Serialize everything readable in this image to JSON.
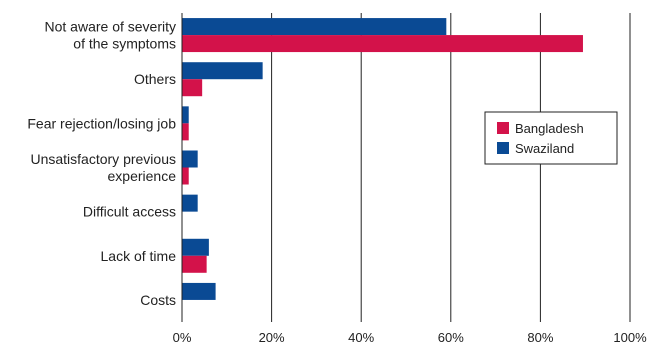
{
  "chart_data": {
    "type": "bar",
    "orientation": "horizontal",
    "categories": [
      [
        "Not aware of severity",
        "of the symptoms"
      ],
      [
        "Others"
      ],
      [
        "Fear rejection/losing job"
      ],
      [
        "Unsatisfactory previous",
        "experience"
      ],
      [
        "Difficult access"
      ],
      [
        "Lack of time"
      ],
      [
        "Costs"
      ]
    ],
    "series": [
      {
        "name": "Swaziland",
        "color": "#0a4a94",
        "values": [
          59,
          18,
          1.5,
          3.5,
          3.5,
          6,
          7.5
        ]
      },
      {
        "name": "Bangladesh",
        "color": "#d3124a",
        "values": [
          89.5,
          4.5,
          1.5,
          1.5,
          null,
          5.5,
          null
        ]
      }
    ],
    "xlim": [
      0,
      100
    ],
    "xticks": [
      0,
      20,
      40,
      60,
      80,
      100
    ],
    "xtick_labels": [
      "0%",
      "20%",
      "40%",
      "60%",
      "80%",
      "100%"
    ],
    "grid": "vertical",
    "legend": {
      "placement": "right",
      "order": [
        "Bangladesh",
        "Swaziland"
      ]
    }
  }
}
